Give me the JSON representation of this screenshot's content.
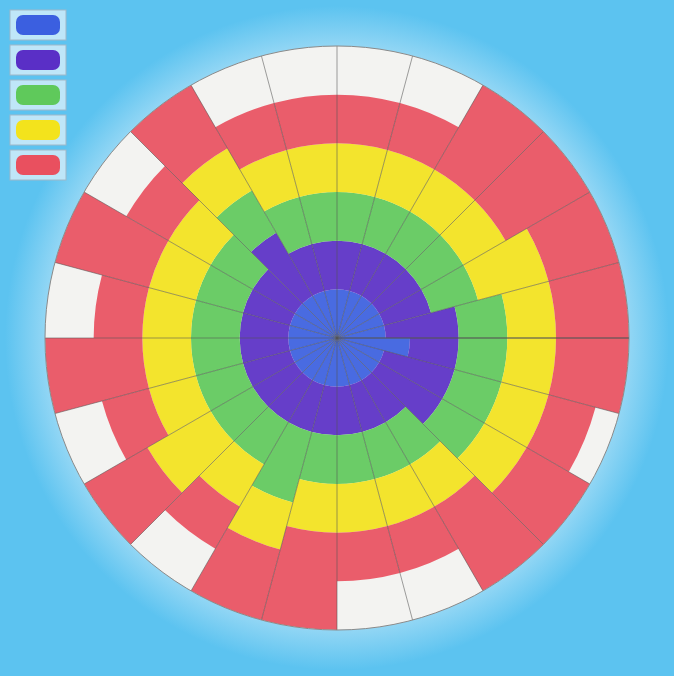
{
  "chart_data": {
    "type": "radial_stacked_bar",
    "categories": [
      null,
      null,
      null,
      null,
      null,
      null,
      null,
      null,
      null,
      null,
      null,
      null,
      null,
      null,
      null,
      null,
      null,
      null,
      null,
      null,
      null,
      null,
      null,
      null
    ],
    "series": [
      {
        "color": "#3b5fe0",
        "values": [
          1,
          1,
          1,
          1,
          1,
          1,
          1.5,
          1,
          1,
          1,
          1,
          1,
          1,
          1,
          1,
          1,
          1,
          1,
          1,
          1,
          1,
          1,
          1,
          1
        ]
      },
      {
        "color": "#5a2fc6",
        "values": [
          1,
          1,
          1,
          1,
          1,
          1.5,
          1,
          1.5,
          1.5,
          1,
          1,
          1,
          1,
          1,
          1,
          1,
          1,
          1,
          1,
          1,
          1,
          1.5,
          1,
          1
        ]
      },
      {
        "color": "#5fc95b",
        "values": [
          1,
          1,
          1,
          1,
          1,
          1,
          1,
          1,
          1,
          1,
          1,
          1,
          1,
          1.5,
          1,
          1,
          1,
          1,
          1,
          1,
          1,
          1,
          1,
          1
        ]
      },
      {
        "color": "#f3e31c",
        "values": [
          1,
          1,
          1,
          1,
          1.5,
          1,
          1,
          1,
          1,
          1,
          1,
          1,
          1,
          1,
          1,
          1.5,
          1,
          1,
          1,
          1,
          1,
          1,
          1,
          1
        ]
      },
      {
        "color": "#e9505f",
        "values": [
          1,
          1,
          2,
          2,
          1.5,
          1.5,
          1.5,
          1,
          1.5,
          2,
          1,
          1,
          2,
          1.5,
          1,
          1.5,
          1,
          2,
          1,
          2,
          1,
          1.5,
          1,
          1
        ]
      }
    ],
    "ylim": [
      0,
      6
    ],
    "yticks": [
      0,
      6
    ],
    "grid": true,
    "tick_labels": false,
    "stacked": true,
    "legend": "top-left"
  }
}
